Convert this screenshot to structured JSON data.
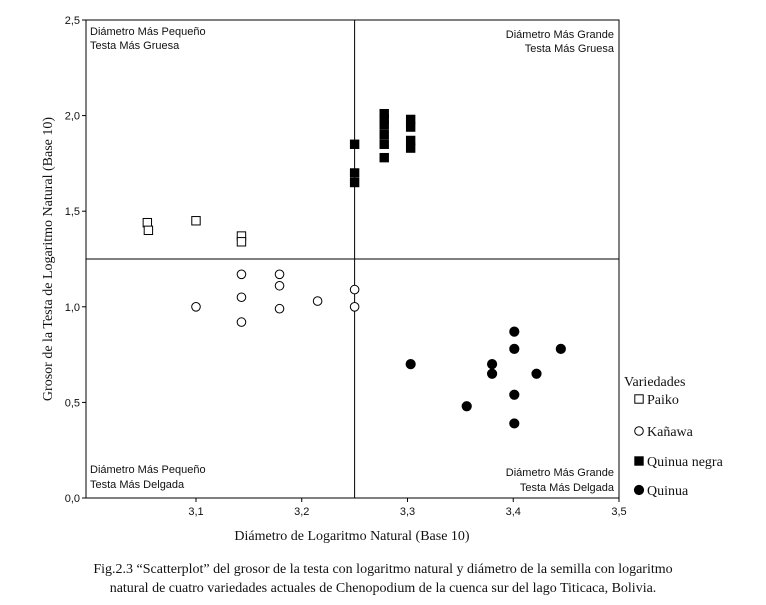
{
  "chart_data": {
    "type": "scatter",
    "xlabel": "Diámetro de Logaritmo Natural (Base 10)",
    "ylabel": "Grosor de la Testa de Logaritmo Natural (Base 10)",
    "xlim": [
      3.0,
      3.5
    ],
    "ylim": [
      0.0,
      2.5
    ],
    "x_ticks": [
      "3,1",
      "3,2",
      "3,3",
      "3,4",
      "3,5"
    ],
    "y_ticks": [
      "0,0",
      "0,5",
      "1,0",
      "1,5",
      "2,0",
      "2,5"
    ],
    "reference_lines": {
      "x": 3.25,
      "y": 1.25
    },
    "quadrant_labels": {
      "top_left": [
        "Diámetro Más Pequeño",
        "Testa Más Gruesa"
      ],
      "top_right": [
        "Diámetro Más Grande",
        "Testa Más Gruesa"
      ],
      "bottom_left": [
        "Diámetro Más Pequeño",
        "Testa Más Delgada"
      ],
      "bottom_right": [
        "Diámetro Más Grande",
        "Testa Más Delgada"
      ]
    },
    "legend_title": "Variedades",
    "series": [
      {
        "name": "Paiko",
        "marker": "open-square",
        "x": [
          3.054,
          3.055,
          3.1,
          3.143,
          3.143
        ],
        "y": [
          1.44,
          1.4,
          1.45,
          1.37,
          1.34
        ]
      },
      {
        "name": "Kañawa",
        "marker": "open-circle",
        "x": [
          3.1,
          3.143,
          3.143,
          3.143,
          3.179,
          3.179,
          3.179,
          3.215,
          3.25,
          3.25
        ],
        "y": [
          1.0,
          1.17,
          1.05,
          0.92,
          1.17,
          1.11,
          0.99,
          1.03,
          1.09,
          1.0
        ]
      },
      {
        "name": "Quinua negra",
        "marker": "filled-square",
        "x": [
          3.25,
          3.25,
          3.25,
          3.278,
          3.278,
          3.278,
          3.278,
          3.278,
          3.278,
          3.303,
          3.303,
          3.303,
          3.303
        ],
        "y": [
          1.85,
          1.7,
          1.65,
          2.01,
          1.98,
          1.95,
          1.9,
          1.85,
          1.78,
          1.98,
          1.94,
          1.87,
          1.83
        ]
      },
      {
        "name": "Quinua",
        "marker": "filled-circle",
        "x": [
          3.303,
          3.356,
          3.38,
          3.38,
          3.401,
          3.401,
          3.401,
          3.401,
          3.422,
          3.445
        ],
        "y": [
          0.7,
          0.48,
          0.7,
          0.65,
          0.87,
          0.78,
          0.54,
          0.39,
          0.65,
          0.78
        ]
      }
    ]
  },
  "caption": {
    "line1": "Fig.2.3 “Scatterplot” del grosor de la testa con logaritmo natural y diámetro de la semilla con logaritmo",
    "line2": "natural de cuatro variedades actuales de Chenopodium de la cuenca sur del lago Titicaca, Bolivia."
  }
}
